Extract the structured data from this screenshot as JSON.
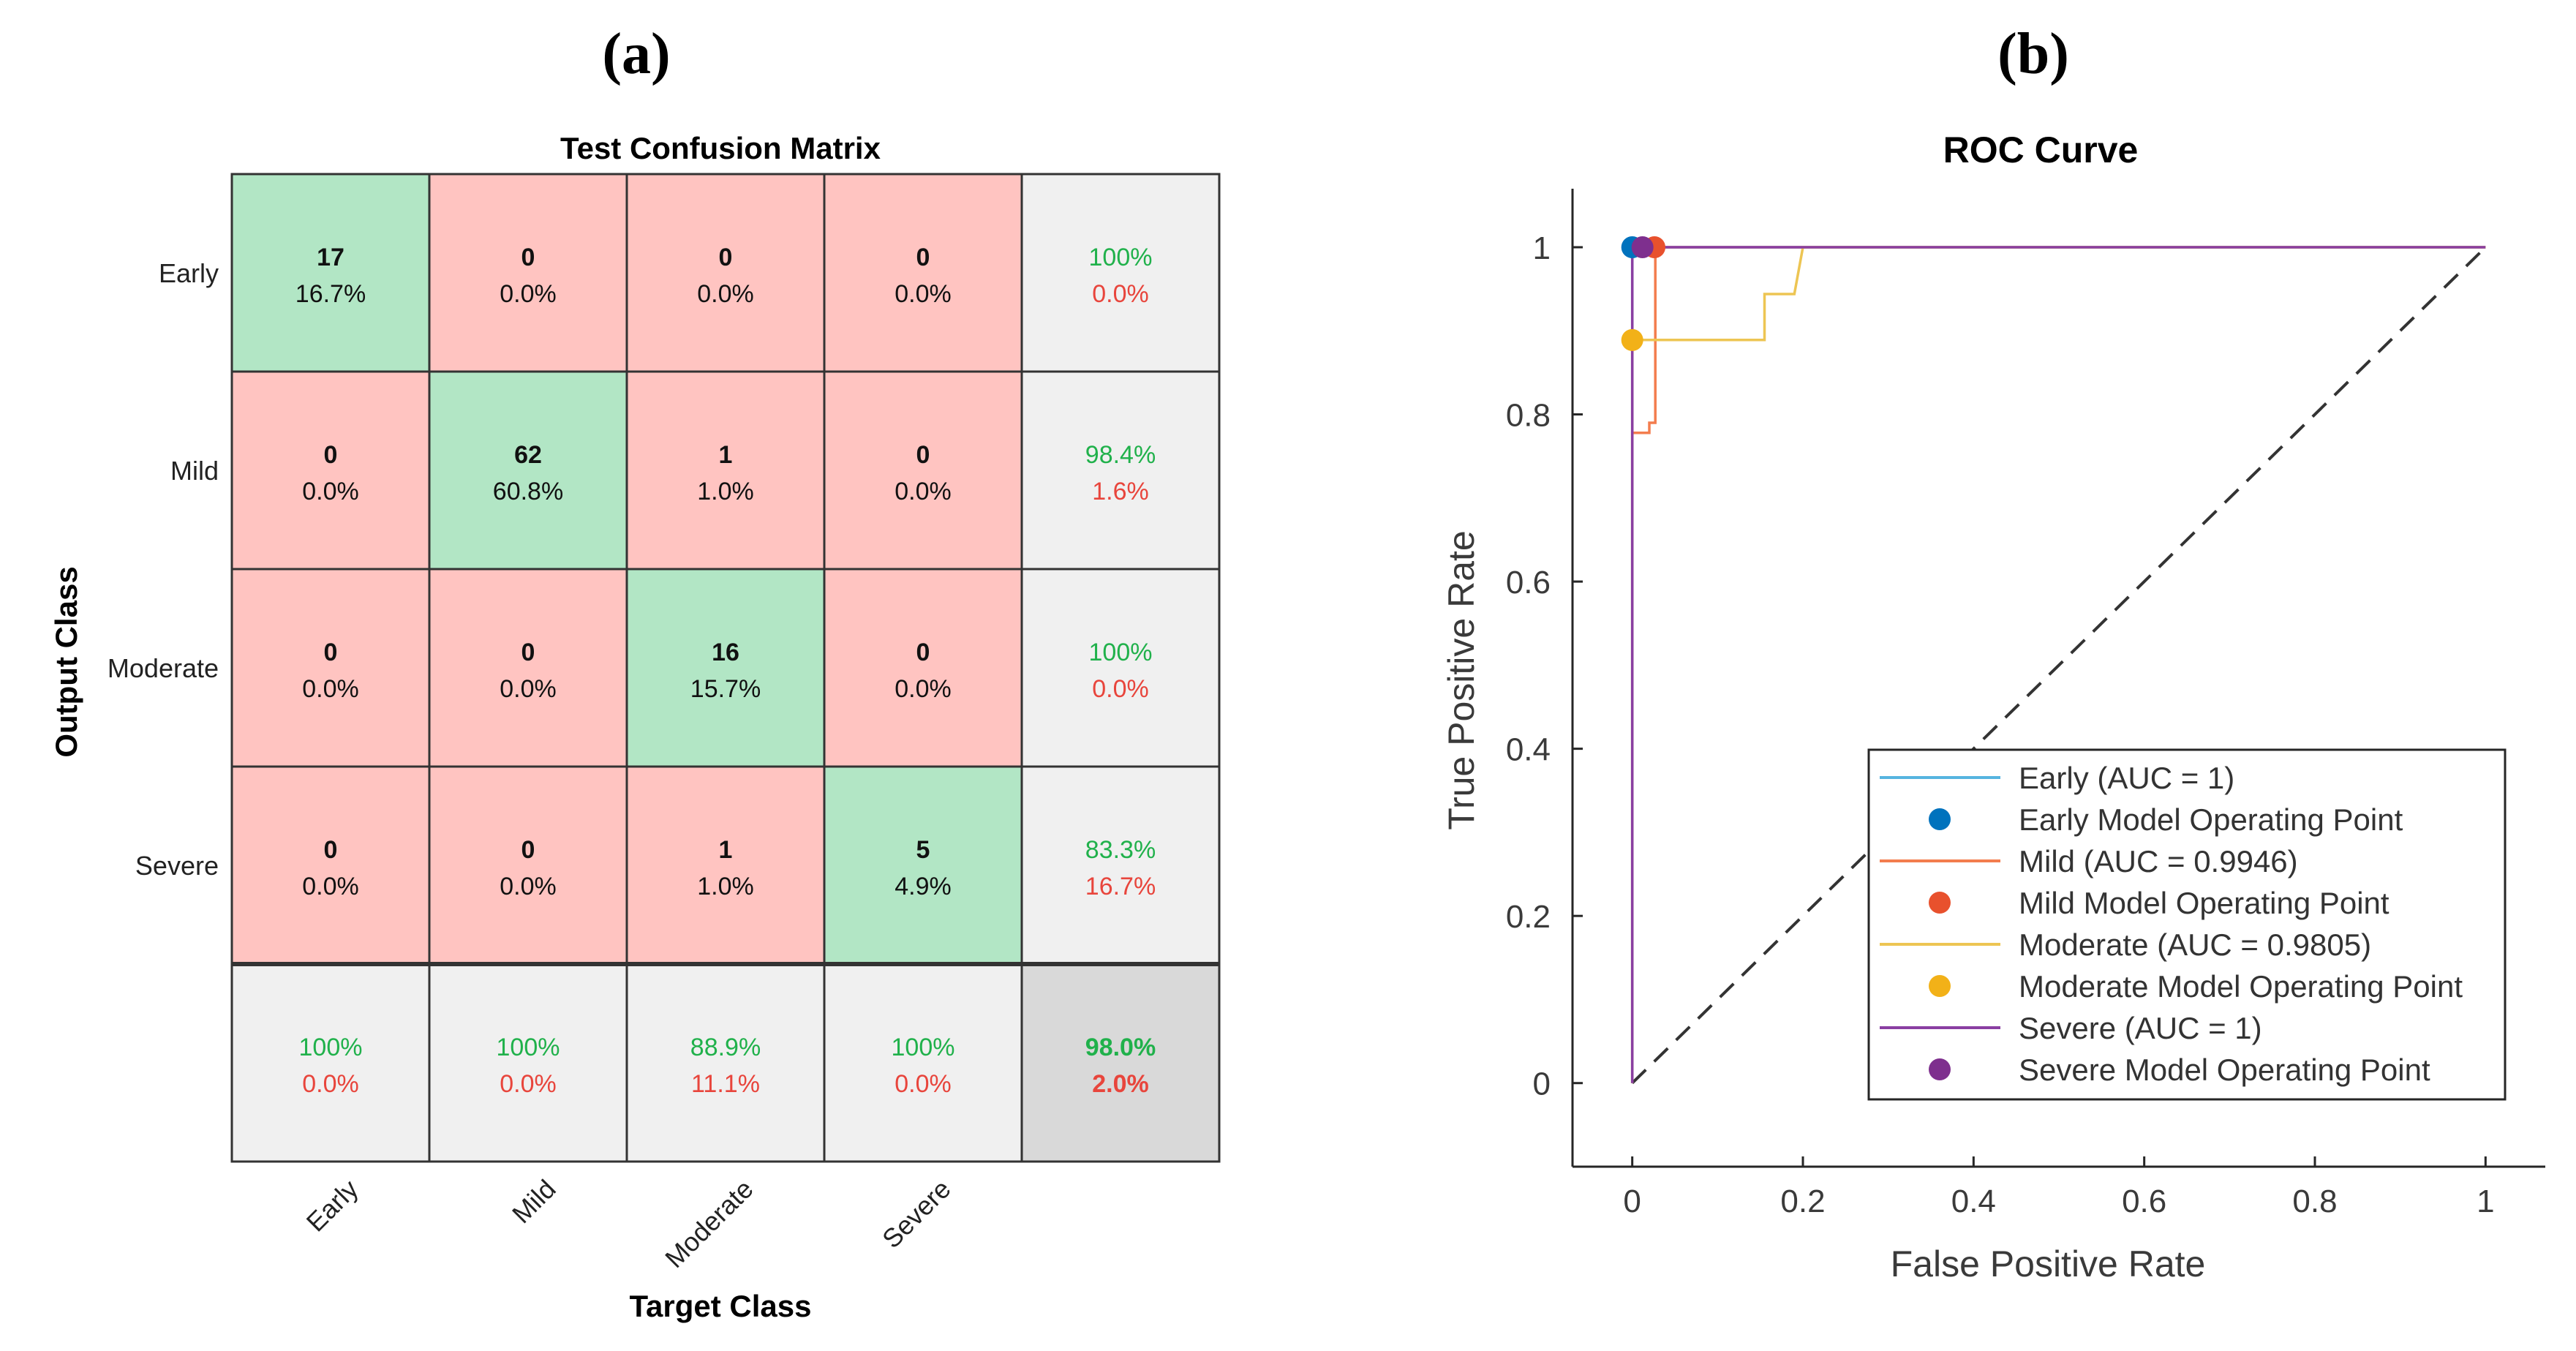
{
  "panels": {
    "a_label": "(a)",
    "b_label": "(b)"
  },
  "colors": {
    "correct_cell": "#B2E6C5",
    "wrong_cell": "#FFC4C1",
    "summary_cell": "#F0F0F0",
    "overall_cell": "#D9D9D9",
    "pct_good": "#20B14B",
    "pct_bad": "#E8453C",
    "early": "#56B4E0",
    "early_point": "#0072BD",
    "mild": "#F37D4E",
    "mild_point": "#E8512D",
    "moderate": "#EDC553",
    "moderate_point": "#F2B118",
    "severe": "#8A3FA2",
    "severe_point": "#7E2F8E"
  },
  "chart_data": [
    {
      "type": "heatmap",
      "title": "Test Confusion Matrix",
      "xlabel": "Target Class",
      "ylabel": "Output Class",
      "classes": [
        "Early",
        "Mild",
        "Moderate",
        "Severe"
      ],
      "counts": [
        [
          17,
          0,
          0,
          0
        ],
        [
          0,
          62,
          1,
          0
        ],
        [
          0,
          0,
          16,
          0
        ],
        [
          0,
          0,
          1,
          5
        ]
      ],
      "percents": [
        [
          "16.7%",
          "0.0%",
          "0.0%",
          "0.0%"
        ],
        [
          "0.0%",
          "60.8%",
          "1.0%",
          "0.0%"
        ],
        [
          "0.0%",
          "0.0%",
          "15.7%",
          "0.0%"
        ],
        [
          "0.0%",
          "0.0%",
          "1.0%",
          "4.9%"
        ]
      ],
      "row_summary": [
        [
          "100%",
          "0.0%"
        ],
        [
          "98.4%",
          "1.6%"
        ],
        [
          "100%",
          "0.0%"
        ],
        [
          "83.3%",
          "16.7%"
        ]
      ],
      "col_summary": [
        [
          "100%",
          "0.0%"
        ],
        [
          "100%",
          "0.0%"
        ],
        [
          "88.9%",
          "11.1%"
        ],
        [
          "100%",
          "0.0%"
        ]
      ],
      "overall": [
        "98.0%",
        "2.0%"
      ]
    },
    {
      "type": "line",
      "title": "ROC Curve",
      "xlabel": "False Positive Rate",
      "ylabel": "True Positive Rate",
      "xlim": [
        -0.07,
        1.07
      ],
      "ylim": [
        -0.1,
        1.07
      ],
      "xticks": [
        0,
        0.2,
        0.4,
        0.6,
        0.8,
        1
      ],
      "xtick_labels": [
        "0",
        "0.2",
        "0.4",
        "0.6",
        "0.8",
        "1"
      ],
      "yticks": [
        0,
        0.2,
        0.4,
        0.6,
        0.8,
        1
      ],
      "ytick_labels": [
        "0",
        "0.2",
        "0.4",
        "0.6",
        "0.8",
        "1"
      ],
      "legend_position": "bottom-right",
      "series": [
        {
          "name": "Early (AUC = 1)",
          "color_key": "early",
          "x": [
            0,
            0,
            1
          ],
          "y": [
            0,
            1,
            1
          ]
        },
        {
          "name": "Mild (AUC = 0.9946)",
          "color_key": "mild",
          "x": [
            0,
            0,
            0.02,
            0.02,
            0.027,
            0.027,
            1
          ],
          "y": [
            0,
            0.778,
            0.778,
            0.79,
            0.79,
            1,
            1
          ]
        },
        {
          "name": "Moderate (AUC = 0.9805)",
          "color_key": "moderate",
          "x": [
            0,
            0,
            0.155,
            0.155,
            0.19,
            0.2,
            0.2,
            1
          ],
          "y": [
            0,
            0.889,
            0.889,
            0.944,
            0.944,
            1,
            1,
            1
          ]
        },
        {
          "name": "Severe (AUC = 1)",
          "color_key": "severe",
          "x": [
            0,
            0,
            1
          ],
          "y": [
            0,
            1,
            1
          ]
        }
      ],
      "operating_points": [
        {
          "name": "Early Model Operating Point",
          "color_key": "early_point",
          "x": 0,
          "y": 1
        },
        {
          "name": "Mild Model Operating Point",
          "color_key": "mild_point",
          "x": 0.026,
          "y": 1
        },
        {
          "name": "Moderate Model Operating Point",
          "color_key": "moderate_point",
          "x": 0,
          "y": 0.889
        },
        {
          "name": "Severe Model Operating Point",
          "color_key": "severe_point",
          "x": 0.012,
          "y": 1
        }
      ],
      "legend": [
        {
          "label": "Early (AUC = 1)",
          "kind": "line",
          "color_key": "early"
        },
        {
          "label": "Early Model Operating Point",
          "kind": "point",
          "color_key": "early_point"
        },
        {
          "label": "Mild (AUC = 0.9946)",
          "kind": "line",
          "color_key": "mild"
        },
        {
          "label": "Mild Model Operating Point",
          "kind": "point",
          "color_key": "mild_point"
        },
        {
          "label": "Moderate (AUC = 0.9805)",
          "kind": "line",
          "color_key": "moderate"
        },
        {
          "label": "Moderate Model Operating Point",
          "kind": "point",
          "color_key": "moderate_point"
        },
        {
          "label": "Severe (AUC = 1)",
          "kind": "line",
          "color_key": "severe"
        },
        {
          "label": "Severe Model Operating Point",
          "kind": "point",
          "color_key": "severe_point"
        }
      ]
    }
  ]
}
